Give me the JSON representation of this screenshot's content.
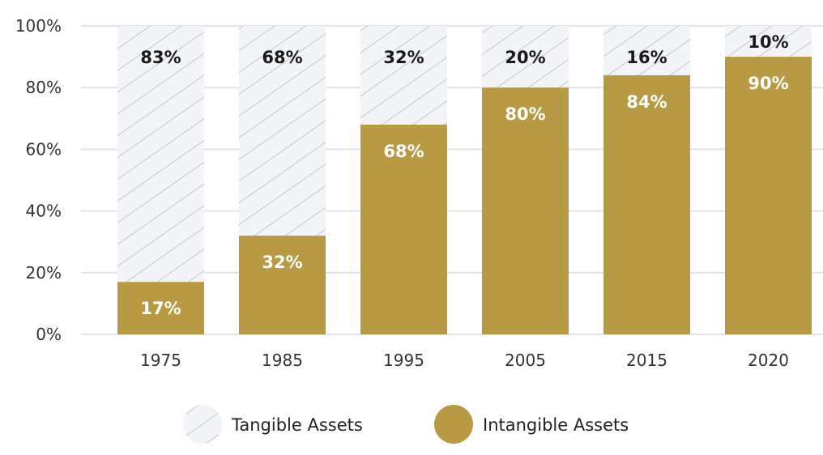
{
  "chart_data": {
    "type": "bar",
    "stacked": true,
    "categories": [
      "1975",
      "1985",
      "1995",
      "2005",
      "2015",
      "2020"
    ],
    "series": [
      {
        "name": "Intangible Assets",
        "values": [
          17,
          32,
          68,
          80,
          84,
          90
        ],
        "labels": [
          "17%",
          "32%",
          "68%",
          "80%",
          "84%",
          "90%"
        ],
        "color": "#b89a45",
        "fill": "solid"
      },
      {
        "name": "Tangible Assets",
        "values": [
          83,
          68,
          32,
          20,
          16,
          10
        ],
        "labels": [
          "83%",
          "68%",
          "32%",
          "20%",
          "16%",
          "10%"
        ],
        "color": "#f3f4f7",
        "hatch_color": "#c9cacf",
        "fill": "hatched"
      }
    ],
    "yticks": [
      "0%",
      "20%",
      "40%",
      "60%",
      "80%",
      "100%"
    ],
    "ytick_values": [
      0,
      20,
      40,
      60,
      80,
      100
    ],
    "ylim": [
      0,
      100
    ],
    "grid": true,
    "legend": {
      "placement": "bottom",
      "entries": [
        "Tangible Assets",
        "Intangible Assets"
      ]
    }
  }
}
